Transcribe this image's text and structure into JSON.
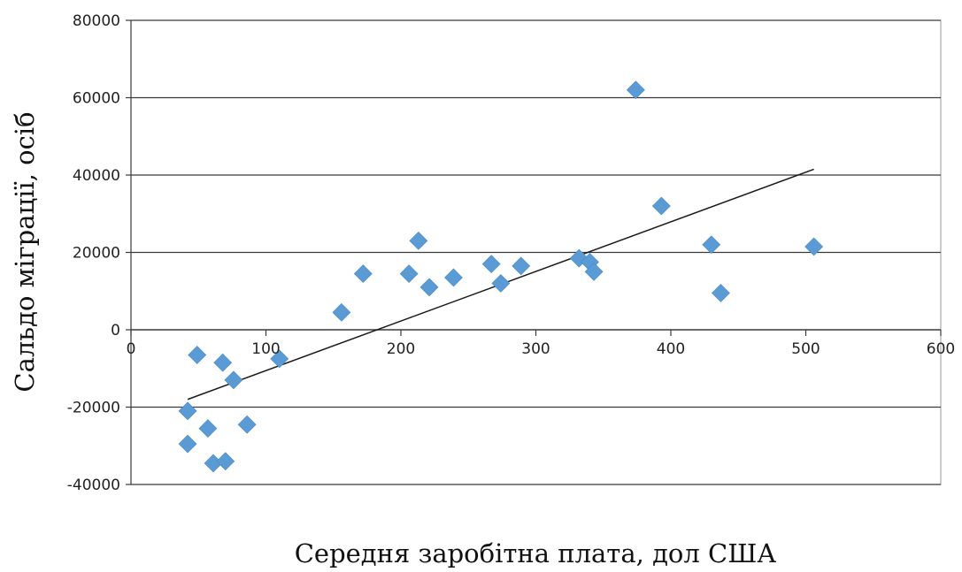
{
  "chart_data": {
    "type": "scatter",
    "title": "",
    "xlabel": "Середня заробітна плата, дол США",
    "ylabel": "Сальдо міграції, осіб",
    "xlim": [
      0,
      600
    ],
    "ylim": [
      -40000,
      80000
    ],
    "x_ticks": [
      0,
      100,
      200,
      300,
      400,
      500,
      600
    ],
    "y_ticks": [
      -40000,
      -20000,
      0,
      20000,
      40000,
      60000,
      80000
    ],
    "x_tick_labels": [
      "0",
      "100",
      "200",
      "300",
      "400",
      "500",
      "600"
    ],
    "y_tick_labels": [
      "-40000",
      "-20000",
      "0",
      "20000",
      "40000",
      "60000",
      "80000"
    ],
    "grid": "horizontal",
    "legend": "none",
    "marker": "diamond",
    "marker_color": "#5b9bd5",
    "series": [
      {
        "points": [
          {
            "x": 42,
            "y": -21000
          },
          {
            "x": 42,
            "y": -29500
          },
          {
            "x": 49,
            "y": -6500
          },
          {
            "x": 57,
            "y": -25500
          },
          {
            "x": 61,
            "y": -34500
          },
          {
            "x": 68,
            "y": -8500
          },
          {
            "x": 70,
            "y": -34000
          },
          {
            "x": 76,
            "y": -13000
          },
          {
            "x": 86,
            "y": -24500
          },
          {
            "x": 110,
            "y": -7500
          },
          {
            "x": 156,
            "y": 4500
          },
          {
            "x": 172,
            "y": 14500
          },
          {
            "x": 206,
            "y": 14500
          },
          {
            "x": 213,
            "y": 23000
          },
          {
            "x": 221,
            "y": 11000
          },
          {
            "x": 239,
            "y": 13500
          },
          {
            "x": 267,
            "y": 17000
          },
          {
            "x": 274,
            "y": 12000
          },
          {
            "x": 289,
            "y": 16500
          },
          {
            "x": 332,
            "y": 18500
          },
          {
            "x": 340,
            "y": 17500
          },
          {
            "x": 343,
            "y": 15000
          },
          {
            "x": 374,
            "y": 62000
          },
          {
            "x": 393,
            "y": 32000
          },
          {
            "x": 430,
            "y": 22000
          },
          {
            "x": 437,
            "y": 9500
          },
          {
            "x": 506,
            "y": 21500
          }
        ]
      }
    ],
    "trendline": {
      "type": "linear",
      "x": [
        42,
        506
      ],
      "y": [
        -18000,
        41500
      ],
      "color": "#1a1a1a"
    }
  }
}
